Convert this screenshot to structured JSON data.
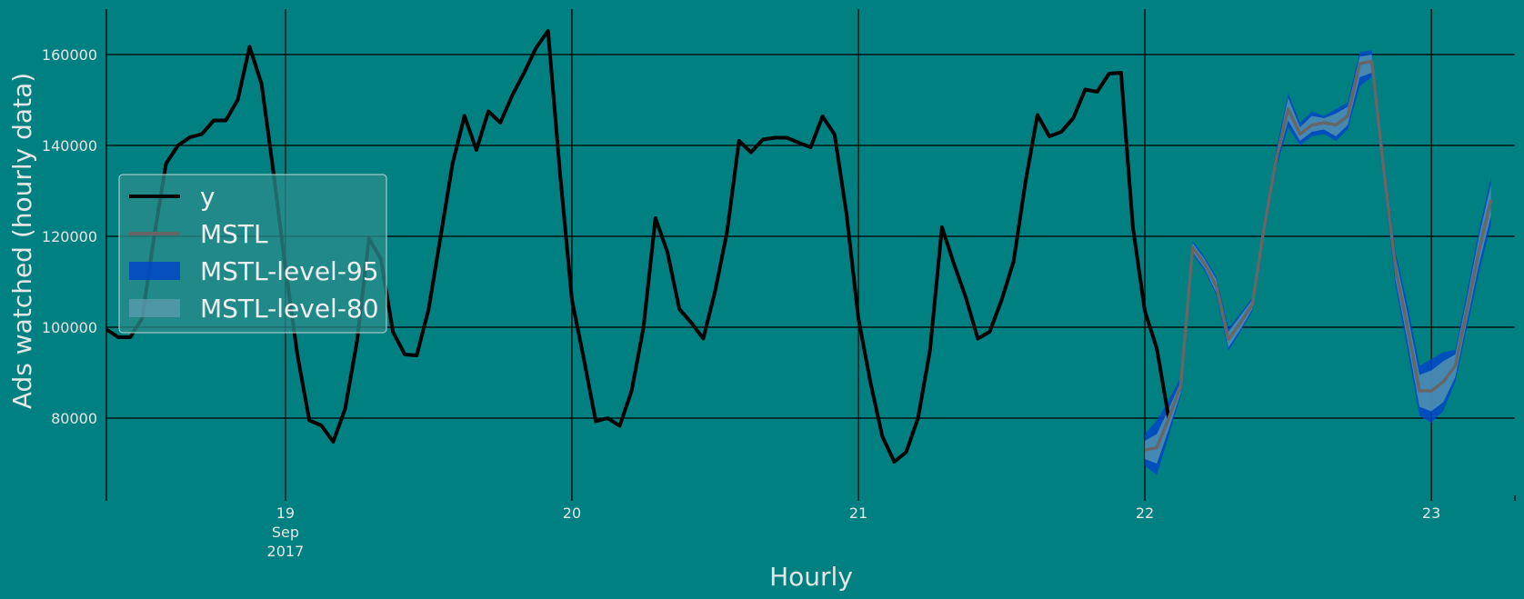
{
  "chart_data": {
    "type": "line",
    "xlabel": "Hourly",
    "ylabel": "Ads watched (hourly data)",
    "x_unit": "hour",
    "x_start": "2017-09-18 09:00",
    "x_forecast_start": "2017-09-22 00:00",
    "x_end": "2017-09-23 06:00",
    "xlim": [
      "2017-09-18 09:00",
      "2017-09-23 07:00"
    ],
    "ylim": [
      63000,
      170000
    ],
    "yticks": [
      80000,
      100000,
      120000,
      140000,
      160000
    ],
    "yticks_labels": [
      "80000",
      "100000",
      "120000",
      "140000",
      "160000"
    ],
    "xticks": [
      {
        "date": "2017-09-19",
        "label": "19",
        "sub1": "Sep",
        "sub2": "2017"
      },
      {
        "date": "2017-09-20",
        "label": "20",
        "sub1": "",
        "sub2": ""
      },
      {
        "date": "2017-09-21",
        "label": "21",
        "sub1": "",
        "sub2": ""
      },
      {
        "date": "2017-09-22",
        "label": "22",
        "sub1": "",
        "sub2": ""
      },
      {
        "date": "2017-09-23",
        "label": "23",
        "sub1": "",
        "sub2": ""
      }
    ],
    "grid": true,
    "legend_position": "center-left",
    "series": [
      {
        "name": "y",
        "color": "#000000",
        "values": [
          99500,
          97800,
          97800,
          102000,
          120000,
          136000,
          140000,
          141800,
          142500,
          145500,
          145500,
          150000,
          161700,
          153500,
          134000,
          113000,
          94000,
          79500,
          78400,
          74800,
          82000,
          97000,
          119500,
          115000,
          99000,
          94000,
          93800,
          104000,
          120000,
          136000,
          146500,
          139000,
          147500,
          145000,
          151000,
          156000,
          161500,
          165200,
          134000,
          106000,
          93000,
          79300,
          80000,
          78300,
          86000,
          100000,
          124000,
          116500,
          104000,
          101000,
          97500,
          108000,
          121000,
          141000,
          138500,
          141300,
          141700,
          141700,
          140600,
          139600,
          146400,
          142400,
          125000,
          102000,
          88000,
          76000,
          70400,
          72500,
          80000,
          95000,
          122000,
          114000,
          106500,
          97500,
          99000,
          106000,
          114500,
          132000,
          146700,
          142000,
          143000,
          146000,
          152300,
          151800,
          155800,
          156000,
          122000,
          103500,
          95300,
          80000
        ]
      },
      {
        "name": "MSTL",
        "color": "#666666",
        "values": [
          73000,
          73500,
          80000,
          87000,
          117500,
          114000,
          109000,
          97300,
          101000,
          105000,
          122000,
          137000,
          148000,
          142500,
          144500,
          145000,
          144500,
          146500,
          158000,
          158500,
          135000,
          113000,
          100000,
          86000,
          86000,
          88000,
          91500,
          104000,
          117000,
          128000
        ]
      }
    ],
    "bands": [
      {
        "name": "MSTL-level-95",
        "color": "#0047c8",
        "lower": [
          69500,
          67500,
          76000,
          85000,
          116000,
          112500,
          107000,
          94800,
          99000,
          103500,
          120000,
          135000,
          144000,
          140000,
          142000,
          142500,
          141000,
          143500,
          153000,
          155000,
          132000,
          109000,
          95000,
          80500,
          79000,
          81500,
          88000,
          100000,
          112000,
          122500
        ],
        "upper": [
          76500,
          79500,
          84000,
          89000,
          119000,
          115500,
          111000,
          99800,
          103000,
          106500,
          124000,
          139000,
          151500,
          145000,
          147500,
          146500,
          148000,
          149500,
          160500,
          161000,
          138000,
          116500,
          105000,
          91500,
          93000,
          94500,
          95000,
          108000,
          121500,
          133000
        ]
      },
      {
        "name": "MSTL-level-80",
        "color": "#5c9cb0",
        "lower": [
          71000,
          70000,
          77500,
          85500,
          116500,
          113000,
          107500,
          95500,
          99500,
          104000,
          121000,
          136000,
          145500,
          141000,
          143000,
          143500,
          142000,
          144500,
          155000,
          156000,
          133000,
          110500,
          97000,
          82500,
          81500,
          83500,
          89000,
          101500,
          114000,
          124500
        ],
        "upper": [
          75000,
          76500,
          82000,
          88000,
          118500,
          115000,
          110500,
          99000,
          102500,
          106000,
          123000,
          138000,
          150500,
          144000,
          146500,
          146000,
          147000,
          148500,
          159500,
          160000,
          137000,
          115500,
          103000,
          89500,
          90500,
          92500,
          94000,
          106500,
          120000,
          131500
        ]
      }
    ]
  }
}
